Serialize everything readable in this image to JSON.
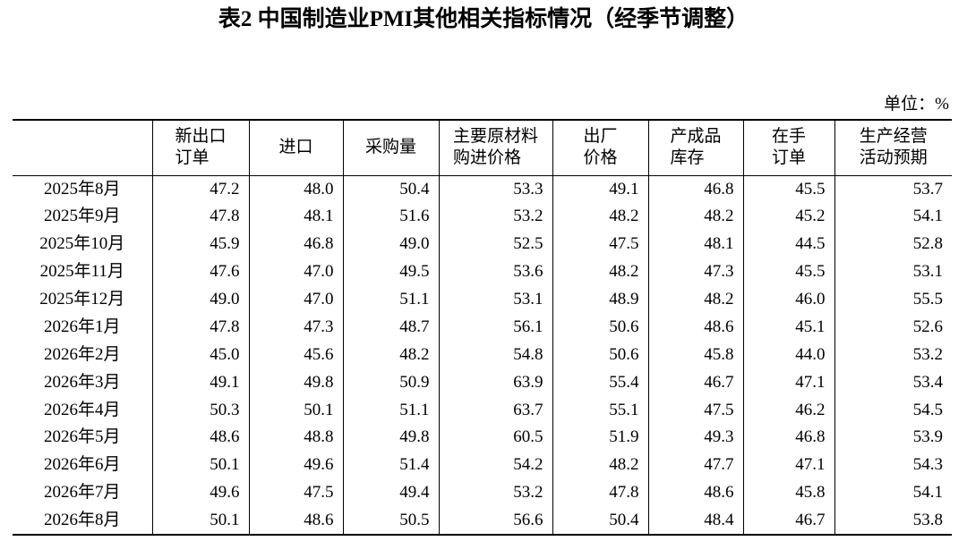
{
  "title": "表2 中国制造业PMI其他相关指标情况（经季节调整）",
  "unit": "单位：%",
  "table": {
    "headers": [
      [
        ""
      ],
      [
        "新出口",
        "订单"
      ],
      [
        "进口"
      ],
      [
        "采购量"
      ],
      [
        "主要原材料",
        "购进价格"
      ],
      [
        "出厂",
        "价格"
      ],
      [
        "产成品",
        "库存"
      ],
      [
        "在手",
        "订单"
      ],
      [
        "生产经营",
        "活动预期"
      ]
    ],
    "rows": [
      [
        "2025年8月",
        "47.2",
        "48.0",
        "50.4",
        "53.3",
        "49.1",
        "46.8",
        "45.5",
        "53.7"
      ],
      [
        "2025年9月",
        "47.8",
        "48.1",
        "51.6",
        "53.2",
        "48.2",
        "48.2",
        "45.2",
        "54.1"
      ],
      [
        "2025年10月",
        "45.9",
        "46.8",
        "49.0",
        "52.5",
        "47.5",
        "48.1",
        "44.5",
        "52.8"
      ],
      [
        "2025年11月",
        "47.6",
        "47.0",
        "49.5",
        "53.6",
        "48.2",
        "47.3",
        "45.5",
        "53.1"
      ],
      [
        "2025年12月",
        "49.0",
        "47.0",
        "51.1",
        "53.1",
        "48.9",
        "48.2",
        "46.0",
        "55.5"
      ],
      [
        "2026年1月",
        "47.8",
        "47.3",
        "48.7",
        "56.1",
        "50.6",
        "48.6",
        "45.1",
        "52.6"
      ],
      [
        "2026年2月",
        "45.0",
        "45.6",
        "48.2",
        "54.8",
        "50.6",
        "45.8",
        "44.0",
        "53.2"
      ],
      [
        "2026年3月",
        "49.1",
        "49.8",
        "50.9",
        "63.9",
        "55.4",
        "46.7",
        "47.1",
        "53.4"
      ],
      [
        "2026年4月",
        "50.3",
        "50.1",
        "51.1",
        "63.7",
        "55.1",
        "47.5",
        "46.2",
        "54.5"
      ],
      [
        "2026年5月",
        "48.6",
        "48.8",
        "49.8",
        "60.5",
        "51.9",
        "49.3",
        "46.8",
        "53.9"
      ],
      [
        "2026年6月",
        "50.1",
        "49.6",
        "51.4",
        "54.2",
        "48.2",
        "47.7",
        "47.1",
        "54.3"
      ],
      [
        "2026年7月",
        "49.6",
        "47.5",
        "49.4",
        "53.2",
        "47.8",
        "48.6",
        "45.8",
        "54.1"
      ],
      [
        "2026年8月",
        "50.1",
        "48.6",
        "50.5",
        "56.6",
        "50.4",
        "48.4",
        "46.7",
        "53.8"
      ]
    ]
  }
}
